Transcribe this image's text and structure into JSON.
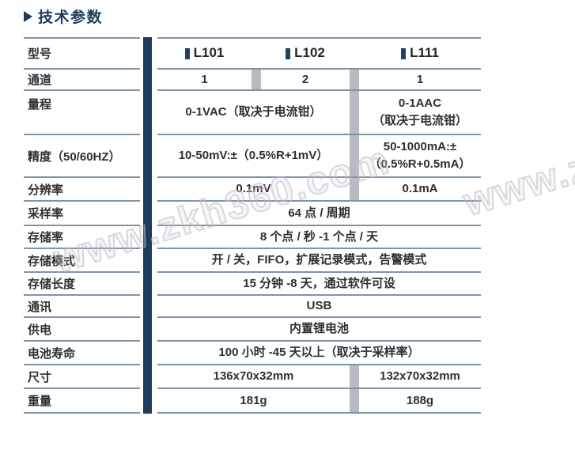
{
  "page": {
    "title": "技术参数",
    "watermark": "www.zkh360.com"
  },
  "colors": {
    "accent_navy": "#1e3c5e",
    "grid_line": "#8094a8",
    "column_separator": "#b9bac2",
    "text": "#2f2f2f",
    "background": "#ffffff"
  },
  "table": {
    "models": [
      {
        "label": "L101"
      },
      {
        "label": "L102"
      },
      {
        "label": "L111"
      }
    ],
    "rows": [
      {
        "label": "型号"
      },
      {
        "label": "通道",
        "cells": [
          "1",
          "2",
          "1"
        ]
      },
      {
        "label": "量程",
        "merged": "0-1VAC（取决于电流钳）",
        "l111_lines": [
          "0-1AAC",
          "（取决于电流钳）"
        ]
      },
      {
        "label": "精度（50/60HZ）",
        "merged": "10-50mV:±（0.5%R+1mV）",
        "l111_lines": [
          "50-1000mA:±",
          "（0.5%R+0.5mA）"
        ]
      },
      {
        "label": "分辨率",
        "merged": "0.1mV",
        "l111": "0.1mA"
      },
      {
        "label": "采样率",
        "full": "64 点 / 周期"
      },
      {
        "label": "存储率",
        "full": "8 个点 / 秒 -1 个点 / 天"
      },
      {
        "label": "存储模式",
        "full": "开 / 关，FIFO，扩展记录模式，告警模式"
      },
      {
        "label": "存储长度",
        "full": "15 分钟 -8 天，通过软件可设"
      },
      {
        "label": "通讯",
        "full": "USB"
      },
      {
        "label": "供电",
        "full": "内置锂电池"
      },
      {
        "label": "电池寿命",
        "full": "100 小时 -45 天以上（取决于采样率）"
      },
      {
        "label": "尺寸",
        "merged": "136x70x32mm",
        "l111": "132x70x32mm"
      },
      {
        "label": "重量",
        "merged": "181g",
        "l111": "188g"
      }
    ]
  }
}
